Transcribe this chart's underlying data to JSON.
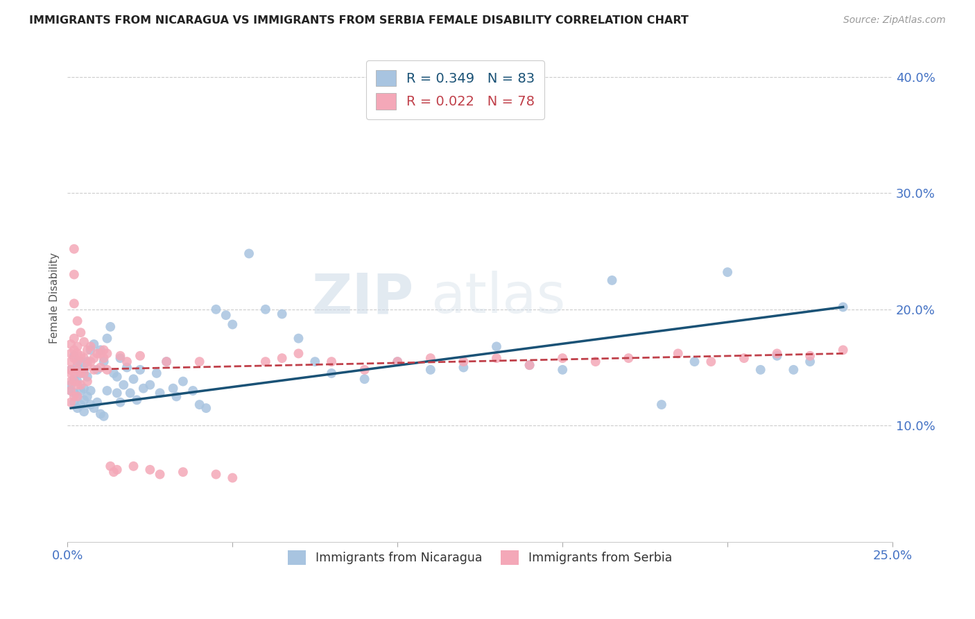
{
  "title": "IMMIGRANTS FROM NICARAGUA VS IMMIGRANTS FROM SERBIA FEMALE DISABILITY CORRELATION CHART",
  "source": "Source: ZipAtlas.com",
  "ylabel": "Female Disability",
  "xlim": [
    0.0,
    0.25
  ],
  "ylim": [
    0.0,
    0.42
  ],
  "nicaragua_R": 0.349,
  "nicaragua_N": 83,
  "serbia_R": 0.022,
  "serbia_N": 78,
  "nicaragua_color": "#a8c4e0",
  "serbia_color": "#f4a8b8",
  "nicaragua_line_color": "#1a5276",
  "serbia_line_color": "#c0404a",
  "nicaragua_x": [
    0.001,
    0.001,
    0.001,
    0.002,
    0.002,
    0.002,
    0.002,
    0.003,
    0.003,
    0.003,
    0.003,
    0.004,
    0.004,
    0.004,
    0.004,
    0.005,
    0.005,
    0.005,
    0.005,
    0.006,
    0.006,
    0.006,
    0.007,
    0.007,
    0.007,
    0.008,
    0.008,
    0.009,
    0.009,
    0.01,
    0.01,
    0.011,
    0.011,
    0.012,
    0.012,
    0.013,
    0.014,
    0.015,
    0.015,
    0.016,
    0.016,
    0.017,
    0.018,
    0.019,
    0.02,
    0.021,
    0.022,
    0.023,
    0.025,
    0.027,
    0.028,
    0.03,
    0.032,
    0.033,
    0.035,
    0.038,
    0.04,
    0.042,
    0.045,
    0.048,
    0.05,
    0.055,
    0.06,
    0.065,
    0.07,
    0.075,
    0.08,
    0.09,
    0.1,
    0.11,
    0.12,
    0.13,
    0.14,
    0.15,
    0.165,
    0.18,
    0.19,
    0.2,
    0.21,
    0.215,
    0.22,
    0.225,
    0.235
  ],
  "nicaragua_y": [
    0.135,
    0.148,
    0.13,
    0.14,
    0.128,
    0.16,
    0.12,
    0.125,
    0.138,
    0.152,
    0.115,
    0.13,
    0.145,
    0.118,
    0.155,
    0.122,
    0.132,
    0.148,
    0.112,
    0.125,
    0.142,
    0.155,
    0.118,
    0.165,
    0.13,
    0.115,
    0.17,
    0.12,
    0.148,
    0.11,
    0.165,
    0.108,
    0.155,
    0.175,
    0.13,
    0.185,
    0.145,
    0.128,
    0.142,
    0.12,
    0.158,
    0.135,
    0.15,
    0.128,
    0.14,
    0.122,
    0.148,
    0.132,
    0.135,
    0.145,
    0.128,
    0.155,
    0.132,
    0.125,
    0.138,
    0.13,
    0.118,
    0.115,
    0.2,
    0.195,
    0.187,
    0.248,
    0.2,
    0.196,
    0.175,
    0.155,
    0.145,
    0.14,
    0.155,
    0.148,
    0.15,
    0.168,
    0.152,
    0.148,
    0.225,
    0.118,
    0.155,
    0.232,
    0.148,
    0.16,
    0.148,
    0.155,
    0.202
  ],
  "serbia_x": [
    0.001,
    0.001,
    0.001,
    0.001,
    0.001,
    0.001,
    0.001,
    0.001,
    0.002,
    0.002,
    0.002,
    0.002,
    0.002,
    0.002,
    0.002,
    0.002,
    0.002,
    0.003,
    0.003,
    0.003,
    0.003,
    0.003,
    0.003,
    0.003,
    0.004,
    0.004,
    0.004,
    0.004,
    0.005,
    0.005,
    0.005,
    0.006,
    0.006,
    0.006,
    0.007,
    0.007,
    0.008,
    0.008,
    0.009,
    0.01,
    0.01,
    0.011,
    0.011,
    0.012,
    0.012,
    0.013,
    0.014,
    0.015,
    0.016,
    0.018,
    0.02,
    0.022,
    0.025,
    0.028,
    0.03,
    0.035,
    0.04,
    0.045,
    0.05,
    0.06,
    0.065,
    0.07,
    0.08,
    0.09,
    0.1,
    0.11,
    0.12,
    0.13,
    0.14,
    0.15,
    0.16,
    0.17,
    0.185,
    0.195,
    0.205,
    0.215,
    0.225,
    0.235
  ],
  "serbia_y": [
    0.148,
    0.155,
    0.145,
    0.138,
    0.162,
    0.13,
    0.12,
    0.17,
    0.252,
    0.23,
    0.175,
    0.205,
    0.158,
    0.165,
    0.145,
    0.138,
    0.125,
    0.19,
    0.168,
    0.155,
    0.148,
    0.162,
    0.135,
    0.125,
    0.18,
    0.16,
    0.145,
    0.135,
    0.172,
    0.158,
    0.145,
    0.165,
    0.152,
    0.138,
    0.168,
    0.155,
    0.158,
    0.148,
    0.162,
    0.162,
    0.15,
    0.165,
    0.158,
    0.162,
    0.148,
    0.065,
    0.06,
    0.062,
    0.16,
    0.155,
    0.065,
    0.16,
    0.062,
    0.058,
    0.155,
    0.06,
    0.155,
    0.058,
    0.055,
    0.155,
    0.158,
    0.162,
    0.155,
    0.148,
    0.155,
    0.158,
    0.155,
    0.158,
    0.152,
    0.158,
    0.155,
    0.158,
    0.162,
    0.155,
    0.158,
    0.162,
    0.16,
    0.165
  ],
  "nic_line_x": [
    0.001,
    0.235
  ],
  "nic_line_y": [
    0.115,
    0.202
  ],
  "ser_line_x": [
    0.001,
    0.235
  ],
  "ser_line_y": [
    0.148,
    0.162
  ]
}
